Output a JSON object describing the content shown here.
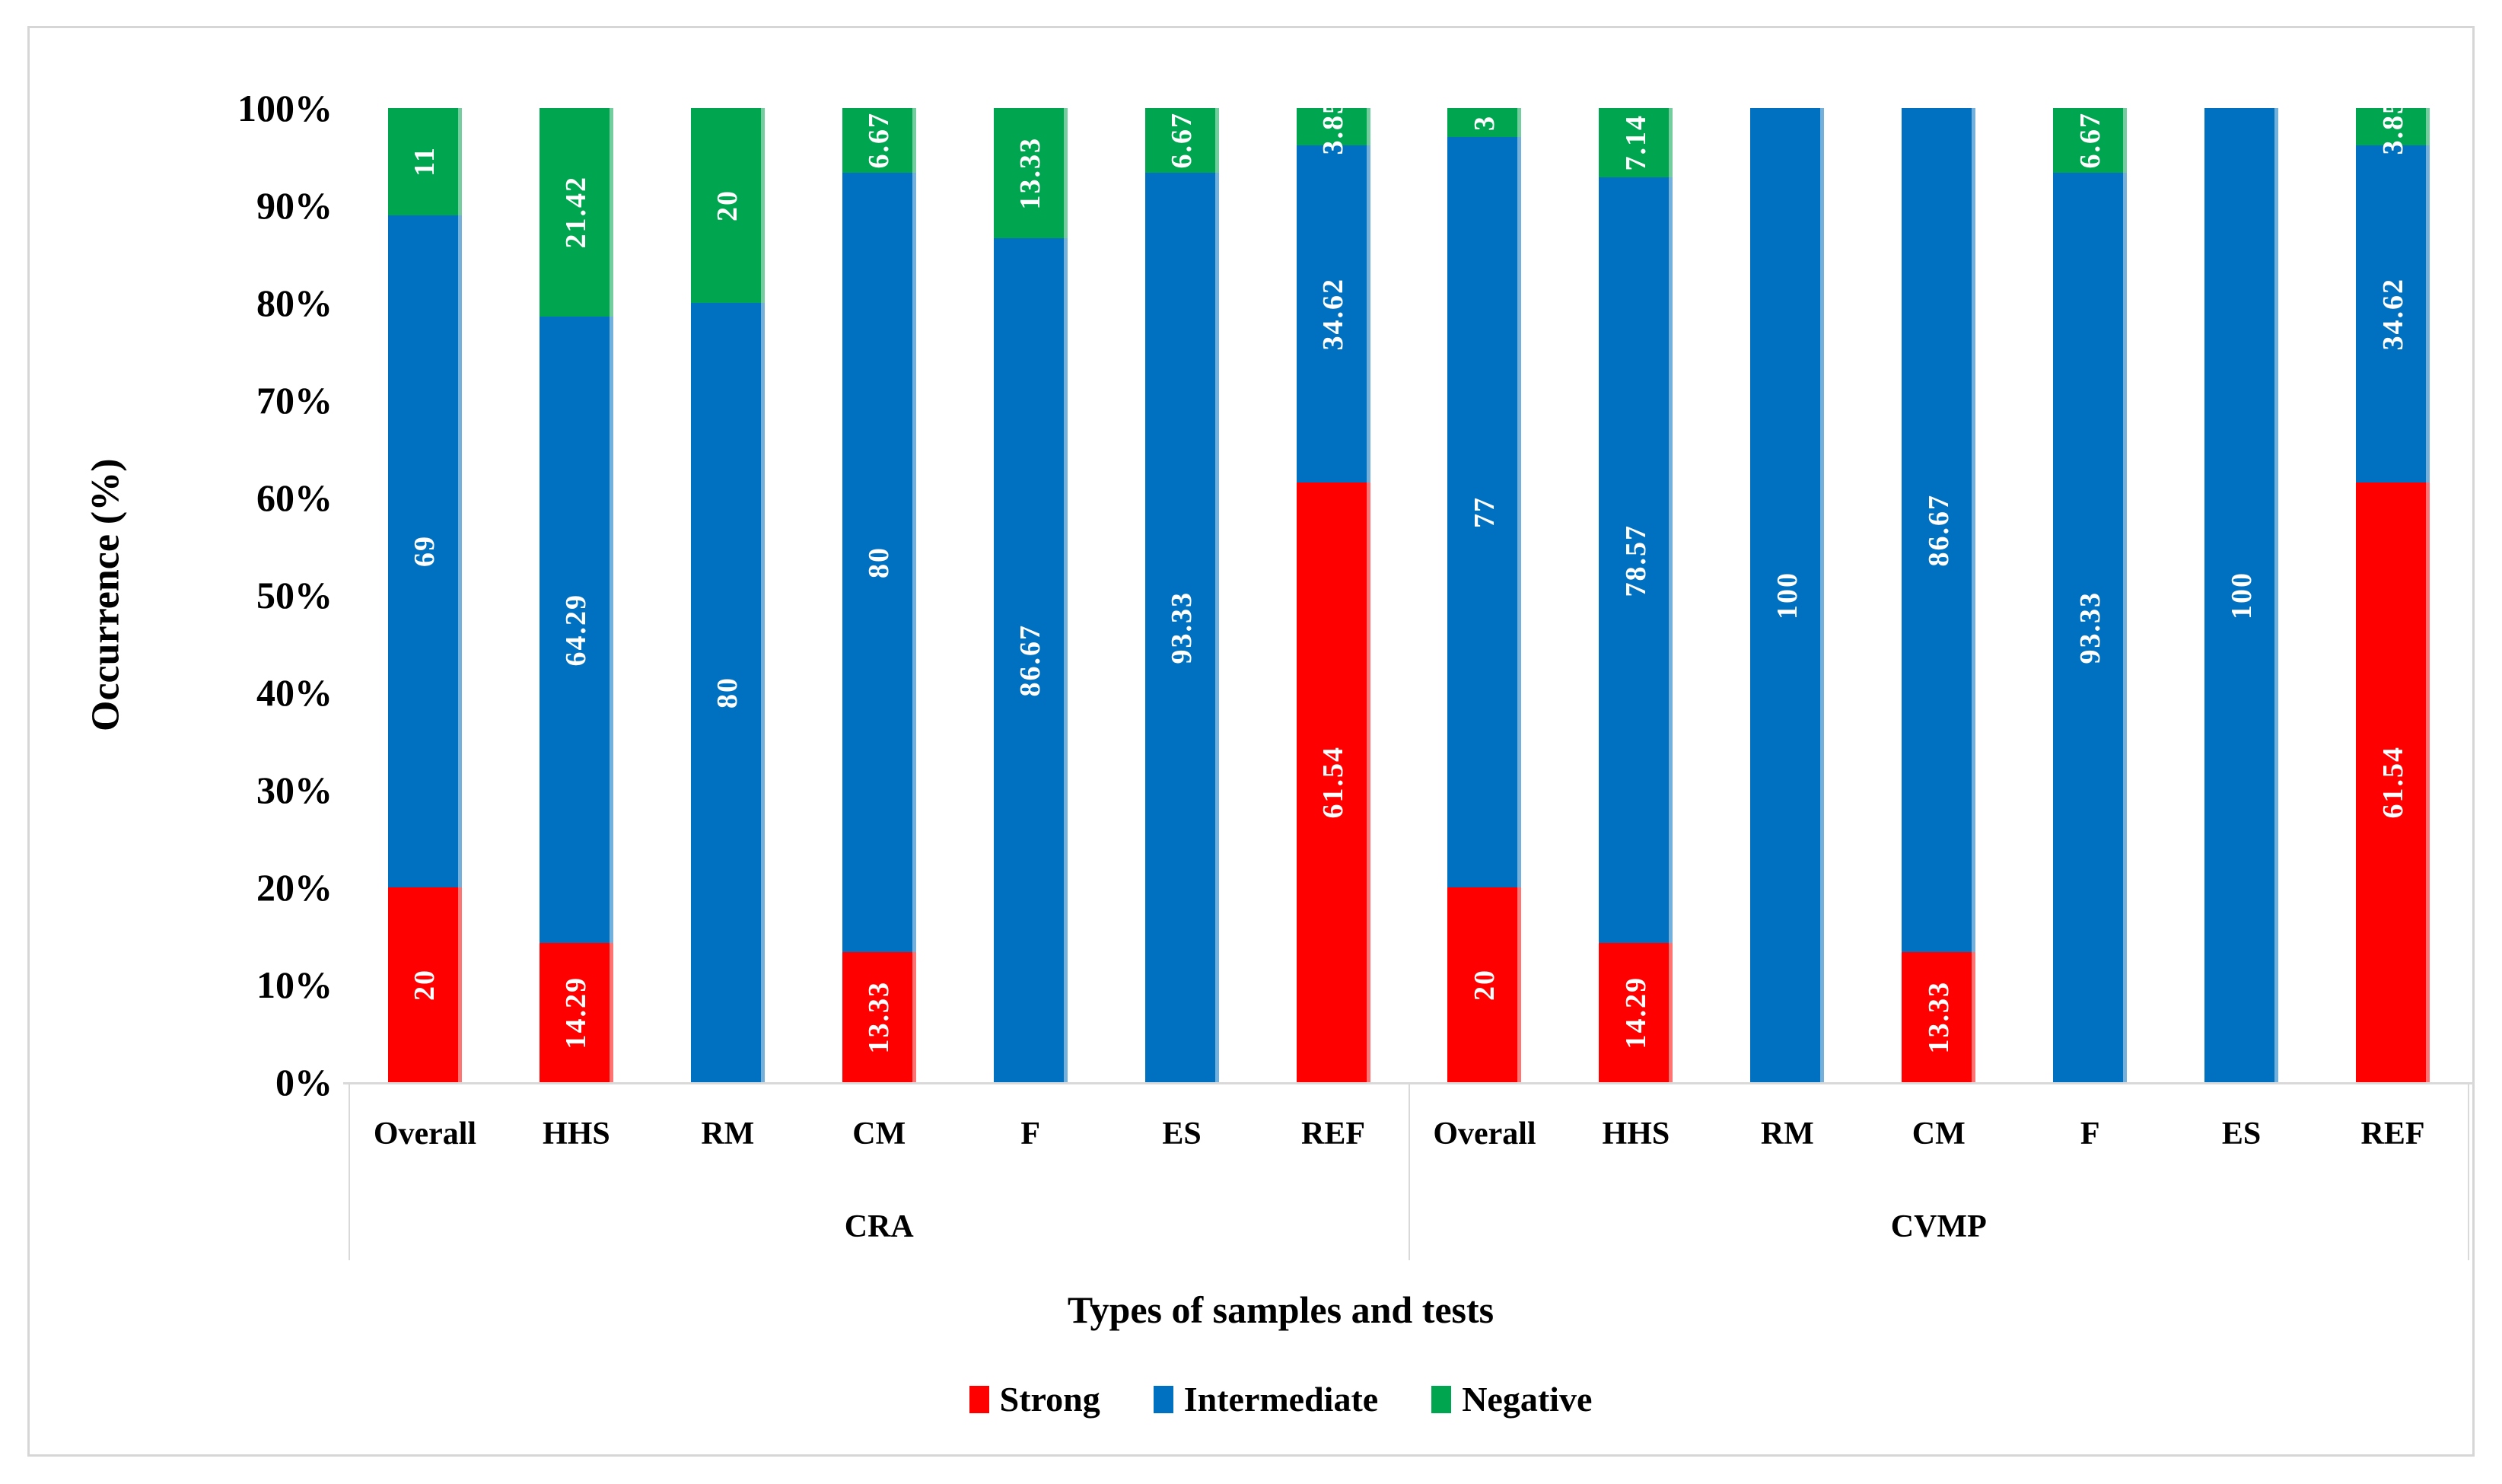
{
  "chart_data": {
    "type": "bar",
    "stacked": true,
    "title": "",
    "xlabel": "Types of samples and tests",
    "ylabel": "Occurrence (%)",
    "ylim": [
      0,
      100
    ],
    "grid": false,
    "legend_position": "bottom",
    "y_tick_labels": [
      "100%",
      "90%",
      "80%",
      "70%",
      "60%",
      "50%",
      "40%",
      "30%",
      "20%",
      "10%",
      "0%"
    ],
    "groups": [
      {
        "label": "CRA",
        "categories": [
          "Overall",
          "HHS",
          "RM",
          "CM",
          "F",
          "ES",
          "REF"
        ]
      },
      {
        "label": "CVMP",
        "categories": [
          "Overall",
          "HHS",
          "RM",
          "CM",
          "F",
          "ES",
          "REF"
        ]
      }
    ],
    "series": [
      {
        "name": "Strong",
        "color": "#FF0000",
        "values": [
          20,
          14.29,
          0,
          13.33,
          0,
          0,
          61.54,
          20,
          14.29,
          0,
          13.33,
          0,
          0,
          61.54
        ]
      },
      {
        "name": "Intermediate",
        "color": "#0070C0",
        "values": [
          69,
          64.29,
          80,
          80,
          86.67,
          93.33,
          34.62,
          77,
          78.57,
          100,
          86.67,
          93.33,
          100,
          34.62
        ]
      },
      {
        "name": "Negative",
        "color": "#00A550",
        "values": [
          11,
          21.42,
          20,
          6.67,
          13.33,
          6.67,
          3.85,
          3,
          7.14,
          0,
          0,
          6.67,
          0,
          3.85
        ]
      }
    ]
  },
  "legend": {
    "items": [
      {
        "label": "Strong",
        "color": "#FF0000"
      },
      {
        "label": "Intermediate",
        "color": "#0070C0"
      },
      {
        "label": "Negative",
        "color": "#00A550"
      }
    ]
  }
}
